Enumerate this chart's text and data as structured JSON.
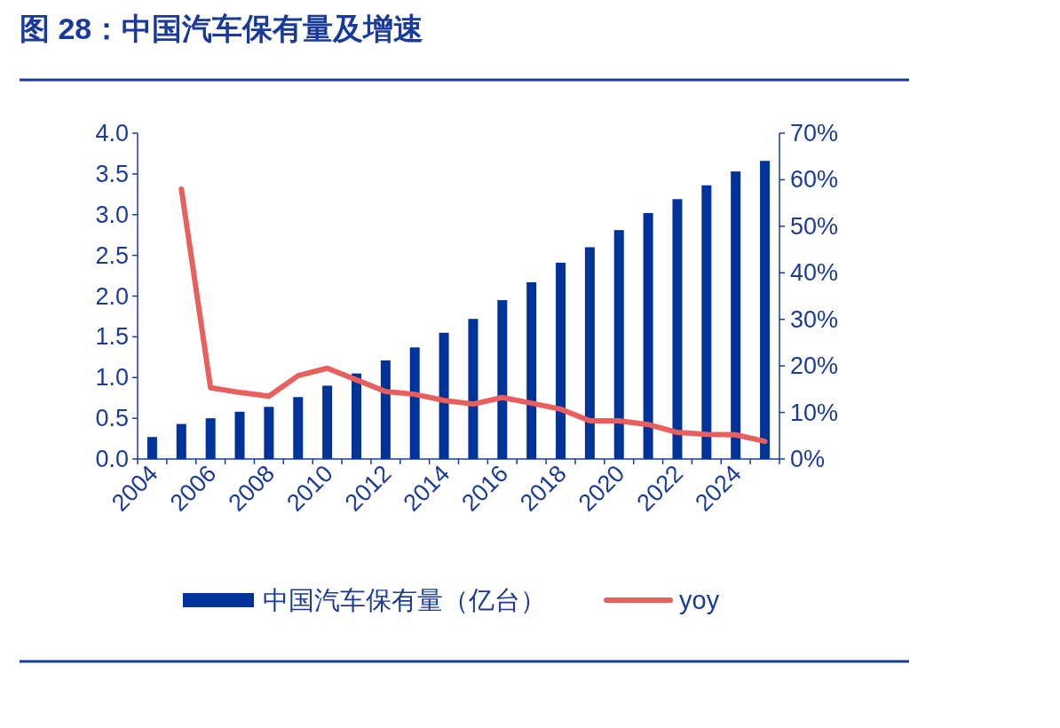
{
  "chart_data": {
    "type": "bar",
    "title": "图 28：中国汽车保有量及增速",
    "categories": [
      "2004",
      null,
      "2006",
      null,
      "2008",
      null,
      "2010",
      null,
      "2012",
      null,
      "2014",
      null,
      "2016",
      null,
      "2018",
      null,
      "2020",
      null,
      "2022",
      null,
      "2024",
      null
    ],
    "series": [
      {
        "name": "中国汽车保有量（亿台）",
        "color": "#003399",
        "values": [
          0.27,
          0.43,
          0.5,
          0.58,
          0.64,
          0.76,
          0.9,
          1.05,
          1.21,
          1.37,
          1.55,
          1.72,
          1.95,
          2.17,
          2.41,
          2.6,
          2.81,
          3.02,
          3.19,
          3.36,
          3.53,
          3.66
        ]
      },
      {
        "name": "yoy",
        "type": "line",
        "axis": "y2",
        "color": "#e8605e",
        "values": [
          null,
          58,
          15.3,
          14.3,
          13.5,
          17.9,
          19.5,
          17,
          14.5,
          13.9,
          12.6,
          11.8,
          13.2,
          12,
          10.7,
          8.2,
          8.2,
          7.4,
          5.7,
          5.3,
          5.2,
          3.8
        ]
      }
    ],
    "ylim": [
      0,
      4
    ],
    "yticks": [
      {
        "value": 0,
        "label": "0.0"
      },
      0.5,
      {
        "value": 1,
        "label": "1.0"
      },
      1.5,
      {
        "value": 2,
        "label": "2.0"
      },
      2.5,
      {
        "value": 3,
        "label": "3.0"
      },
      3.5,
      {
        "value": 4,
        "label": "4.0"
      }
    ],
    "y2lim": [
      0,
      70
    ],
    "y2ticks": [
      {
        "value": 0,
        "label": "0%"
      },
      {
        "value": 10,
        "label": "10%"
      },
      {
        "value": 20,
        "label": "20%"
      },
      {
        "value": 30,
        "label": "30%"
      },
      {
        "value": 40,
        "label": "40%"
      },
      {
        "value": 50,
        "label": "50%"
      },
      {
        "value": 60,
        "label": "60%"
      },
      {
        "value": 70,
        "label": "70%"
      }
    ],
    "grid": false,
    "legend": "bottom"
  }
}
